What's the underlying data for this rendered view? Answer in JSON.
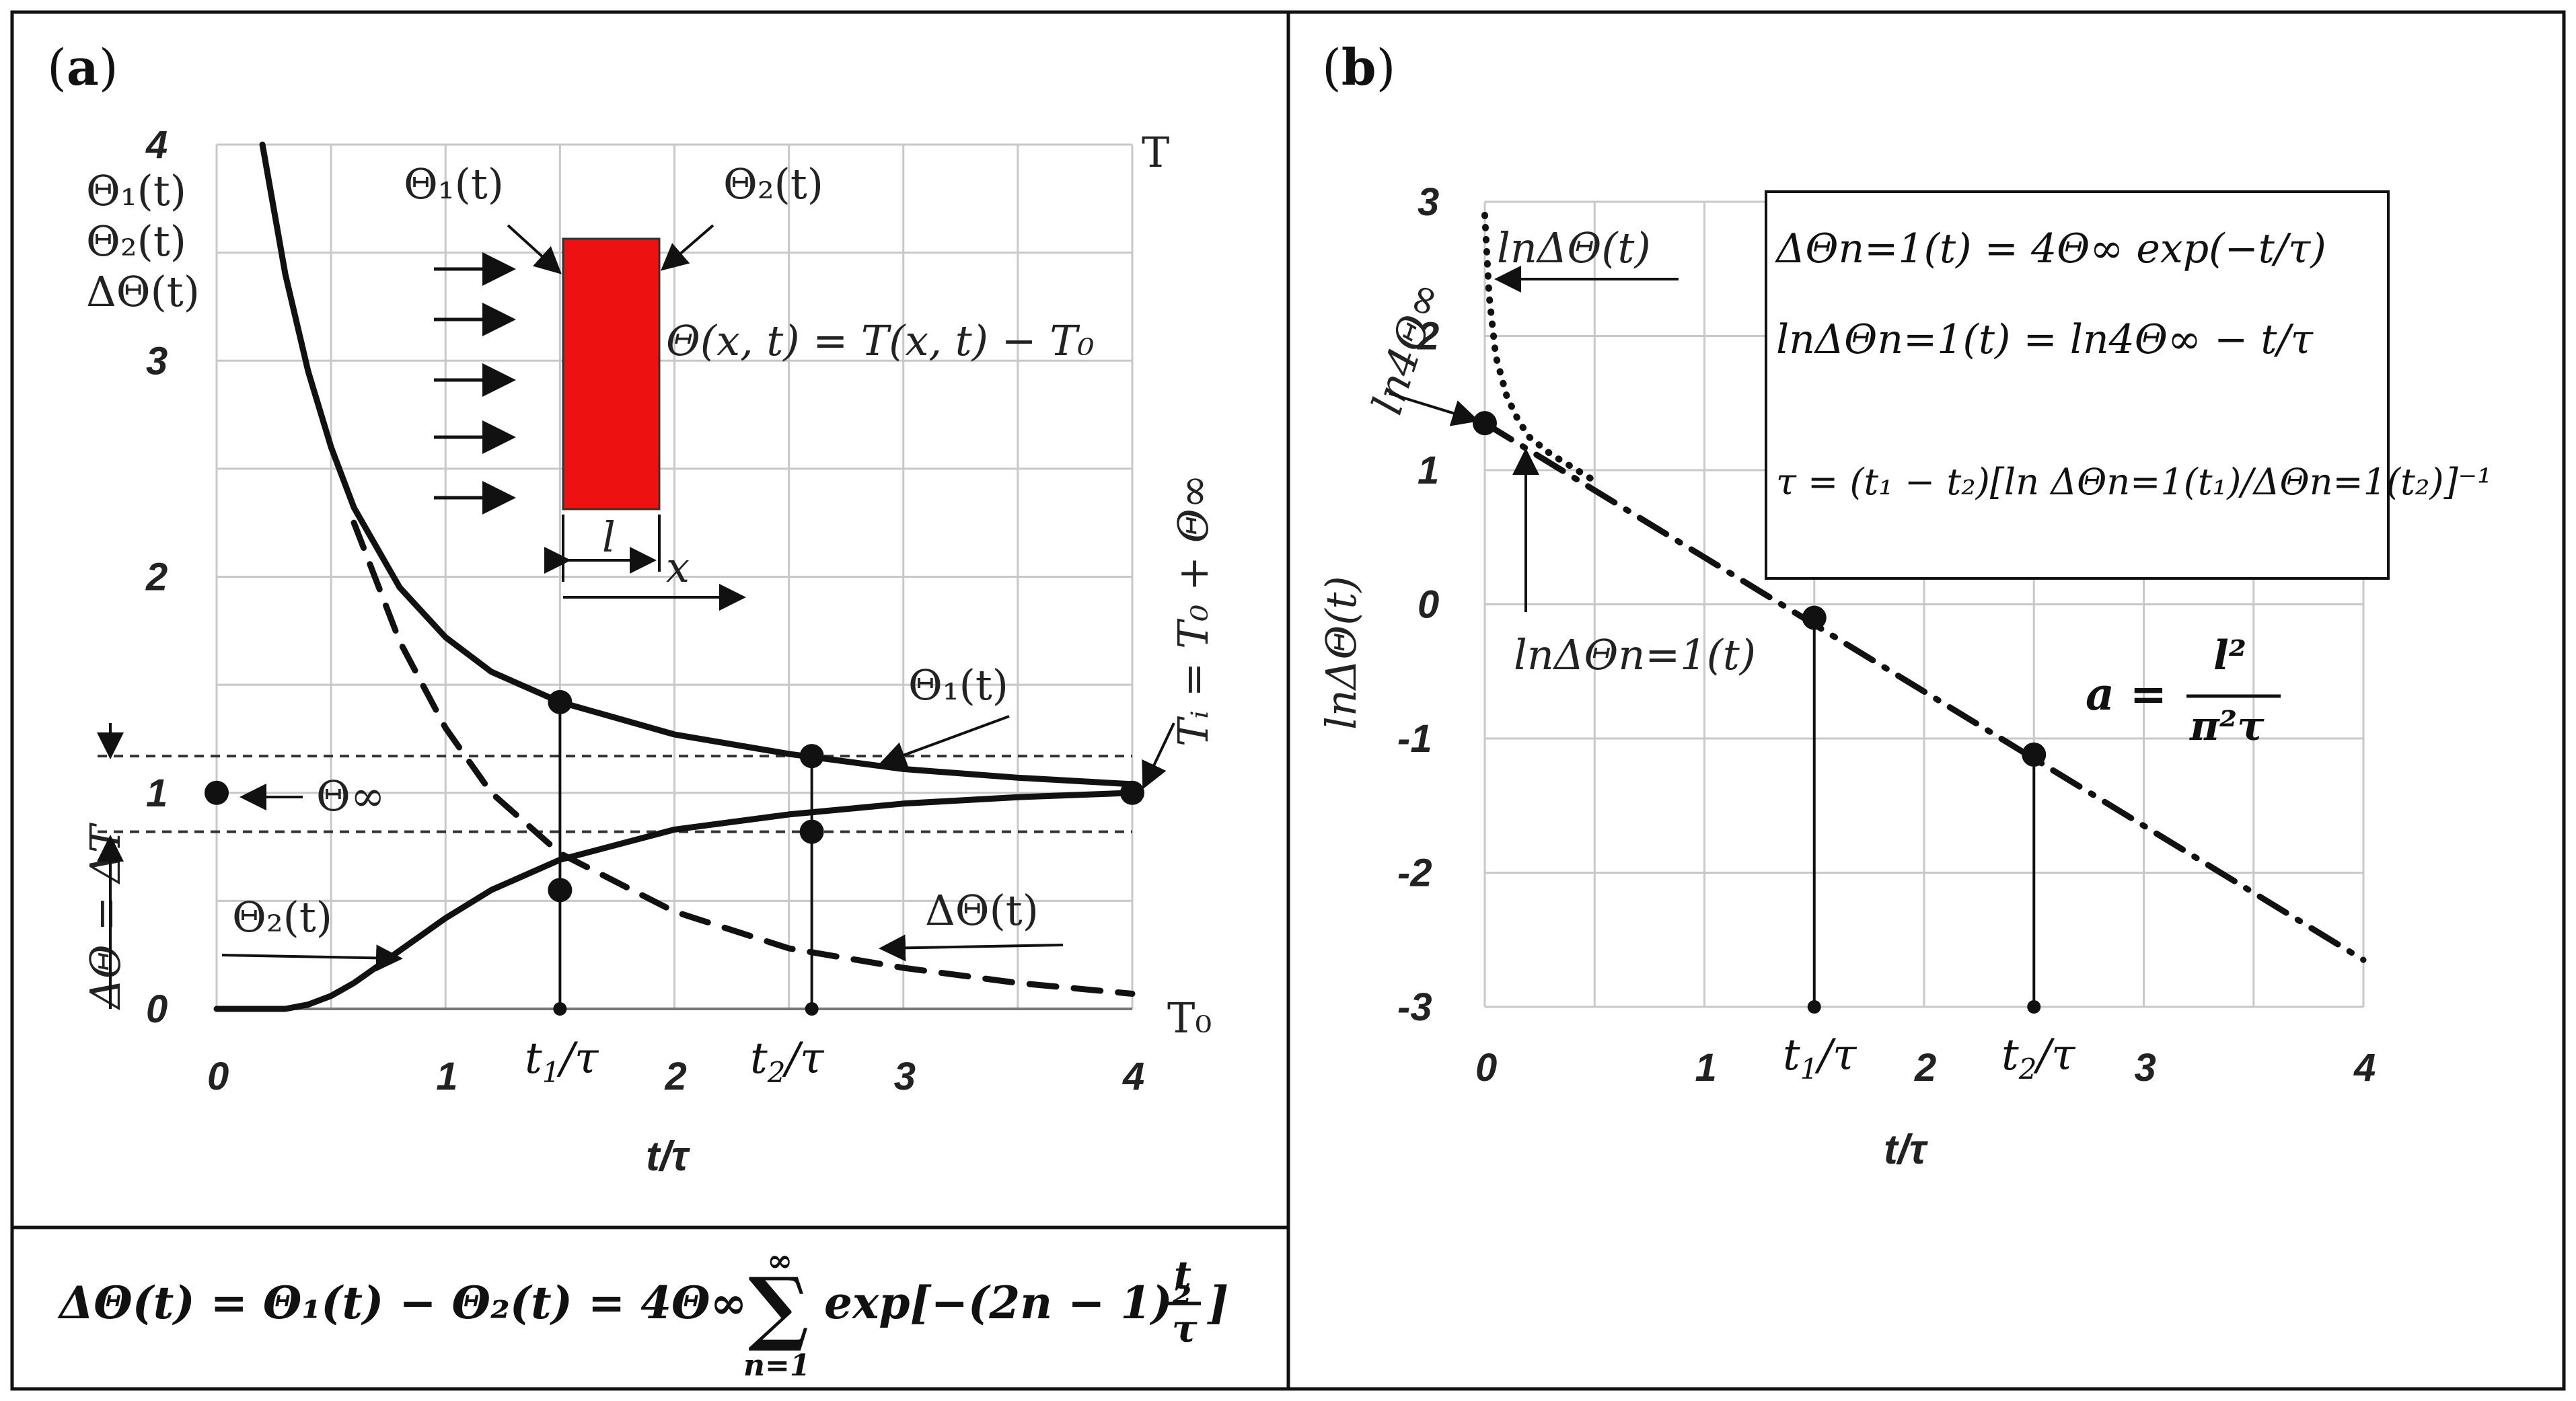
{
  "panels": [
    {
      "label_open": "(",
      "label_letter": "a",
      "label_close": ")",
      "chart_left": {
        "type": "line",
        "xlim": [
          0,
          4
        ],
        "ylim": [
          0,
          4
        ],
        "xticks": [
          "0",
          "1",
          "2",
          "3",
          "4"
        ],
        "yticks": [
          "0",
          "1",
          "2",
          "3",
          "4"
        ],
        "xlabel": "t/τ",
        "ylabel_top": [
          "Θ₁(t)",
          "Θ₂(t)",
          "ΔΘ(t)"
        ],
        "right_top_label": "T",
        "right_bottom_label": "T₀",
        "right_axis_label": "Tᵢ = T₀ + Θ∞",
        "left_axis_label": "ΔΘ = ΔT",
        "theta_inf_label": "Θ∞",
        "series": [
          {
            "name": "Θ₁(t)",
            "style": "solid",
            "x": [
              0.2,
              0.3,
              0.4,
              0.5,
              0.6,
              0.8,
              1.0,
              1.2,
              1.5,
              2.0,
              2.5,
              3.0,
              3.5,
              4.0
            ],
            "y": [
              4.0,
              3.4,
              2.95,
              2.6,
              2.32,
              1.95,
              1.72,
              1.56,
              1.42,
              1.27,
              1.18,
              1.11,
              1.07,
              1.04
            ]
          },
          {
            "name": "Θ₂(t)",
            "style": "solid",
            "x": [
              0,
              0.3,
              0.4,
              0.5,
              0.6,
              0.8,
              1.0,
              1.2,
              1.5,
              2.0,
              2.5,
              3.0,
              3.5,
              4.0
            ],
            "y": [
              0,
              0,
              0.02,
              0.06,
              0.12,
              0.27,
              0.42,
              0.55,
              0.69,
              0.83,
              0.9,
              0.95,
              0.98,
              1.0
            ]
          },
          {
            "name": "ΔΘ(t)",
            "style": "dashed",
            "x": [
              0.6,
              0.8,
              1.0,
              1.2,
              1.5,
              2.0,
              2.5,
              3.0,
              3.5,
              4.0
            ],
            "y": [
              2.25,
              1.7,
              1.3,
              1.0,
              0.72,
              0.45,
              0.28,
              0.19,
              0.12,
              0.07
            ]
          }
        ],
        "points": [
          {
            "x": 1.5,
            "y": 1.42
          },
          {
            "x": 1.5,
            "y": 0.55
          },
          {
            "x": 2.6,
            "y": 1.17
          },
          {
            "x": 2.6,
            "y": 0.82
          },
          {
            "x": 4.0,
            "y": 1.0
          },
          {
            "x": 0,
            "y": 1.0
          }
        ],
        "t1_x": 1.5,
        "t2_x": 2.6,
        "upper_dashed_y": 1.17,
        "lower_dashed_y": 0.82
      },
      "inset": {
        "theta1_label": "Θ₁(t)",
        "theta2_label": "Θ₂(t)",
        "relation_label": "Θ(x, t) = T(x, t) − T₀",
        "l_label": "l",
        "x_label": "x",
        "fill_color": "#ee1111"
      },
      "curve_labels": {
        "theta1": "Θ₁(t)",
        "theta2": "Θ₂(t)",
        "delta": "ΔΘ(t)"
      },
      "t1_label_t": "t",
      "t1_label_sub": "1",
      "t2_label_t": "t",
      "t2_label_sub": "2",
      "slash_tau": "/τ",
      "formula": {
        "lhs": "ΔΘ(t) = Θ₁(t) − Θ₂(t) = 4Θ∞",
        "sum_top": "∞",
        "sum_sign": "∑",
        "sum_bottom": "n=1",
        "rhs": "exp[−(2n − 1)²",
        "frac_num": "t",
        "frac_den": "τ",
        "close": "]"
      }
    },
    {
      "label_open": "(",
      "label_letter": "b",
      "label_close": ")",
      "chart_right": {
        "type": "line",
        "xlim": [
          0,
          4
        ],
        "ylim": [
          -3,
          3
        ],
        "xticks": [
          "0",
          "1",
          "2",
          "3",
          "4"
        ],
        "yticks": [
          "-3",
          "-2",
          "-1",
          "0",
          "1",
          "2",
          "3"
        ],
        "xlabel": "t/τ",
        "ylabel": "lnΔΘ(t)",
        "intercept_label": "ln4Θ∞",
        "curve_label": "lnΔΘ(t)",
        "line_label": "lnΔΘn=1(t)",
        "diffusivity": {
          "lhs": "a =",
          "num": "l²",
          "den": "π²τ"
        },
        "series": [
          {
            "name": "lnΔΘ(t)",
            "style": "dotted",
            "x": [
              0.0,
              0.02,
              0.05,
              0.1,
              0.15,
              0.2,
              0.3,
              0.4,
              0.5
            ],
            "y": [
              2.9,
              2.3,
              1.85,
              1.55,
              1.38,
              1.25,
              1.12,
              1.02,
              0.92
            ]
          },
          {
            "name": "lnΔΘn=1(t)",
            "style": "dashdot",
            "x": [
              0.0,
              4.0
            ],
            "y": [
              1.35,
              -2.65
            ]
          }
        ],
        "points": [
          {
            "x": 0.0,
            "y": 1.35
          },
          {
            "x": 1.5,
            "y": -0.1
          },
          {
            "x": 2.5,
            "y": -1.12
          },
          {
            "x": 1.5,
            "y": -3.0
          },
          {
            "x": 2.5,
            "y": -3.0
          }
        ],
        "t1_x": 1.5,
        "t2_x": 2.5,
        "eq_box": {
          "eq1": "ΔΘn=1(t) = 4Θ∞ exp(−t/τ)",
          "eq2": "lnΔΘn=1(t) = ln4Θ∞ − t/τ",
          "eq3": "τ = (t₁ − t₂)[ln ΔΘn=1(t₁)/ΔΘn=1(t₂)]⁻¹"
        }
      },
      "t1_label_t": "t",
      "t1_label_sub": "1",
      "t2_label_t": "t",
      "t2_label_sub": "2",
      "slash_tau": "/τ"
    }
  ]
}
